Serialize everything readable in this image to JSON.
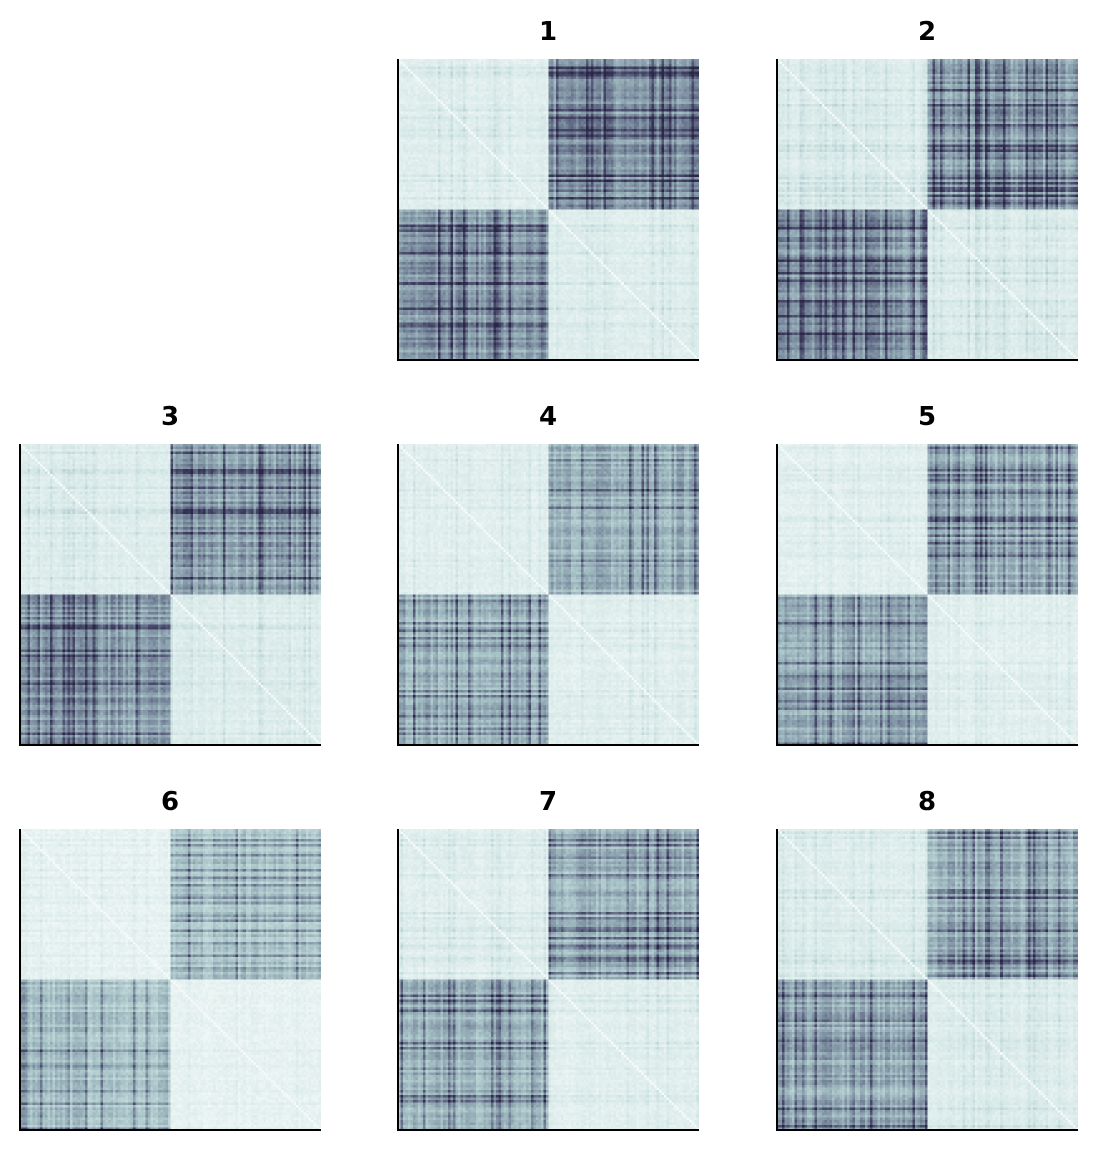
{
  "figure": {
    "colormap": [
      "#f4faf9",
      "#d4e7e6",
      "#a9c4c8",
      "#7c8ea0",
      "#4b4c6d",
      "#2a2746"
    ]
  },
  "chart_data": [
    {
      "type": "heatmap",
      "title": "1",
      "size": 120,
      "split": 0.5,
      "block_level": 0.62,
      "within_level": 0.14,
      "seed": 11,
      "grid": false,
      "ticks": false
    },
    {
      "type": "heatmap",
      "title": "2",
      "size": 120,
      "split": 0.5,
      "block_level": 0.6,
      "within_level": 0.16,
      "seed": 23,
      "grid": false,
      "ticks": false
    },
    {
      "type": "heatmap",
      "title": "3",
      "size": 120,
      "split": 0.5,
      "block_level": 0.58,
      "within_level": 0.15,
      "seed": 37,
      "grid": false,
      "ticks": false
    },
    {
      "type": "heatmap",
      "title": "4",
      "size": 120,
      "split": 0.5,
      "block_level": 0.5,
      "within_level": 0.13,
      "seed": 41,
      "grid": false,
      "ticks": false
    },
    {
      "type": "heatmap",
      "title": "5",
      "size": 120,
      "split": 0.5,
      "block_level": 0.52,
      "within_level": 0.12,
      "seed": 53,
      "grid": false,
      "ticks": false
    },
    {
      "type": "heatmap",
      "title": "6",
      "size": 120,
      "split": 0.5,
      "block_level": 0.42,
      "within_level": 0.09,
      "seed": 67,
      "grid": false,
      "ticks": false
    },
    {
      "type": "heatmap",
      "title": "7",
      "size": 120,
      "split": 0.5,
      "block_level": 0.5,
      "within_level": 0.13,
      "seed": 79,
      "grid": false,
      "ticks": false
    },
    {
      "type": "heatmap",
      "title": "8",
      "size": 120,
      "split": 0.5,
      "block_level": 0.52,
      "within_level": 0.15,
      "seed": 97,
      "grid": false,
      "ticks": false
    }
  ]
}
